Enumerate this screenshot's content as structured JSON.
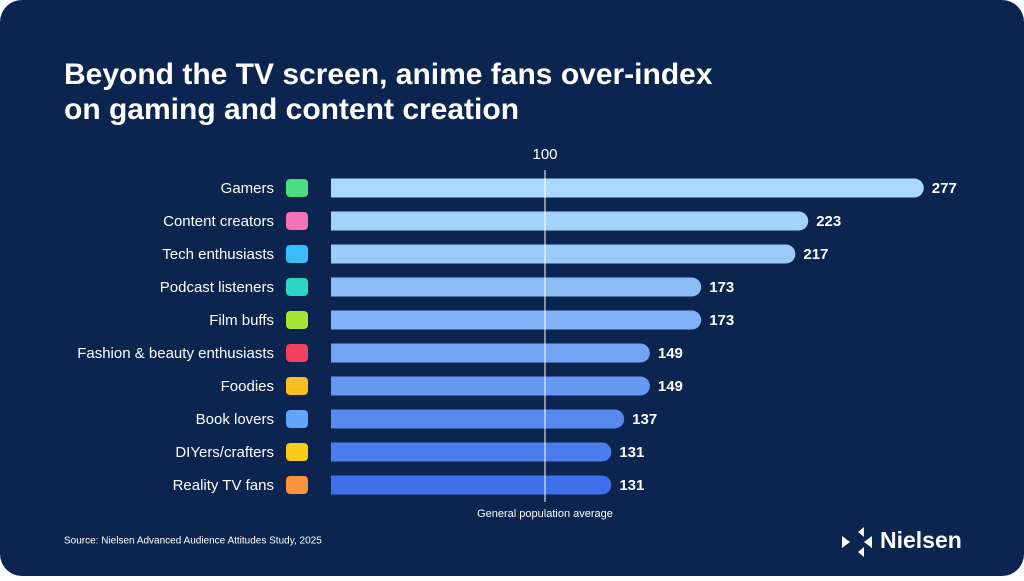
{
  "chart_data": {
    "type": "hbar",
    "title": [
      "Beyond the TV screen, anime fans over-index",
      "on gaming and content creation"
    ],
    "categories": [
      "Gamers",
      "Content creators",
      "Tech enthusiasts",
      "Podcast listeners",
      "Film buffs",
      "Fashion & beauty enthusiasts",
      "Foodies",
      "Book lovers",
      "DIYers/crafters",
      "Reality TV fans"
    ],
    "values": [
      277,
      223,
      217,
      173,
      173,
      149,
      149,
      137,
      131,
      131
    ],
    "colors": [
      "#aad9fb",
      "#a3d2fa",
      "#9ccbf9",
      "#8dbdf7",
      "#82b2f6",
      "#74a5f4",
      "#6698f2",
      "#5889ef",
      "#4c7dec",
      "#3f6fe9"
    ],
    "xlim": [
      0,
      300
    ],
    "reference": {
      "value": 100,
      "label": "General population average"
    },
    "source": "Source: Nielsen Advanced Audience Attitudes Study, 2025",
    "brand": "Nielsen"
  }
}
